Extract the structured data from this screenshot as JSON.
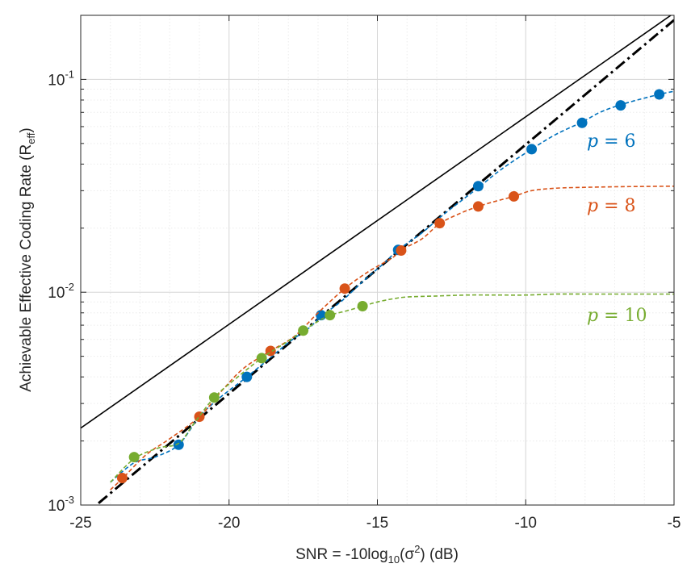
{
  "chart_data": {
    "type": "line",
    "y_scale": "log",
    "xlim": [
      -25,
      -5
    ],
    "ylim": [
      0.001,
      0.2
    ],
    "x_ticks": [
      -25,
      -20,
      -15,
      -10,
      -5
    ],
    "x_tick_labels": [
      "-25",
      "-20",
      "-15",
      "-10",
      "-5"
    ],
    "y_ticks": [
      {
        "value": 0.001,
        "base": "10",
        "exp": "-3"
      },
      {
        "value": 0.01,
        "base": "10",
        "exp": "-2"
      },
      {
        "value": 0.1,
        "base": "10",
        "exp": "-1"
      }
    ],
    "xlabel": {
      "pre": "SNR = -10log",
      "sub": "10",
      "mid": "(σ",
      "sup": "2",
      "post": ") (dB)"
    },
    "ylabel": {
      "main": "Achievable Effective Coding Rate (R",
      "sub": "eff",
      "post": ")"
    },
    "grid": true,
    "series": [
      {
        "name": "upper-bound-solid",
        "style": "solid",
        "color": "#000000",
        "x": [
          -25,
          -5
        ],
        "y": [
          0.0023,
          0.205
        ]
      },
      {
        "name": "bound-dashdot",
        "style": "dashdot",
        "color": "#000000",
        "x": [
          -24.4,
          -5
        ],
        "y": [
          0.00102,
          0.19
        ]
      },
      {
        "name": "p6",
        "label_var": "p",
        "label_eq": " = 6",
        "color": "#0072BD",
        "curve_x": [
          -24.0,
          -23.2,
          -22.5,
          -21.7,
          -21.0,
          -20.3,
          -19.5,
          -18.7,
          -18.0,
          -17.3,
          -16.9,
          -16.2,
          -15.5,
          -14.8,
          -14.3,
          -13.5,
          -12.8,
          -11.6,
          -10.8,
          -9.8,
          -9.0,
          -8.1,
          -7.5,
          -6.8,
          -6.1,
          -5.5,
          -5.0
        ],
        "curve_y": [
          0.00128,
          0.00158,
          0.00168,
          0.00192,
          0.0026,
          0.0032,
          0.0039,
          0.0048,
          0.0058,
          0.0068,
          0.0077,
          0.0091,
          0.0112,
          0.0136,
          0.0158,
          0.019,
          0.023,
          0.031,
          0.038,
          0.047,
          0.055,
          0.063,
          0.07,
          0.076,
          0.081,
          0.085,
          0.088
        ],
        "points_x": [
          -21.7,
          -19.4,
          -16.9,
          -14.3,
          -11.6,
          -9.8,
          -8.1,
          -6.8,
          -5.5
        ],
        "points_y": [
          0.00192,
          0.004,
          0.0078,
          0.0158,
          0.0315,
          0.047,
          0.0625,
          0.0755,
          0.085
        ]
      },
      {
        "name": "p8",
        "label_var": "p",
        "label_eq": " = 8",
        "color": "#D95319",
        "curve_x": [
          -24.0,
          -23.6,
          -22.8,
          -22.0,
          -21.0,
          -20.2,
          -19.5,
          -18.6,
          -17.8,
          -17.0,
          -16.1,
          -15.3,
          -14.5,
          -14.2,
          -13.5,
          -12.9,
          -12.2,
          -11.6,
          -11.0,
          -10.4,
          -9.8,
          -9.0,
          -8.0,
          -7.0,
          -6.0,
          -5.0
        ],
        "curve_y": [
          0.00118,
          0.00133,
          0.00172,
          0.00205,
          0.0026,
          0.0035,
          0.0044,
          0.0053,
          0.0062,
          0.008,
          0.0104,
          0.0125,
          0.0145,
          0.0158,
          0.0178,
          0.021,
          0.0235,
          0.0253,
          0.0268,
          0.0282,
          0.03,
          0.0308,
          0.0311,
          0.0313,
          0.0314,
          0.0315
        ],
        "points_x": [
          -23.6,
          -21.0,
          -18.6,
          -16.1,
          -14.2,
          -12.9,
          -11.6,
          -10.4
        ],
        "points_y": [
          0.00134,
          0.0026,
          0.0053,
          0.0104,
          0.0157,
          0.0211,
          0.0253,
          0.0282
        ]
      },
      {
        "name": "p10",
        "label_var": "p",
        "label_eq": " = 10",
        "color": "#77AC30",
        "curve_x": [
          -24.0,
          -23.2,
          -22.4,
          -21.7,
          -21.2,
          -20.5,
          -19.8,
          -18.9,
          -18.0,
          -17.5,
          -17.0,
          -16.6,
          -16.0,
          -15.5,
          -15.0,
          -14.5,
          -14.0,
          -13.0,
          -12.0,
          -11.0,
          -10.0,
          -9.0,
          -8.0,
          -7.0,
          -6.0,
          -5.0
        ],
        "curve_y": [
          0.00128,
          0.00165,
          0.00185,
          0.00195,
          0.0024,
          0.0032,
          0.0039,
          0.0049,
          0.0059,
          0.0066,
          0.0073,
          0.0078,
          0.0082,
          0.0086,
          0.009,
          0.0093,
          0.0095,
          0.0096,
          0.0097,
          0.0097,
          0.0097,
          0.0098,
          0.0098,
          0.0098,
          0.0098,
          0.0098
        ],
        "points_x": [
          -23.2,
          -20.5,
          -18.9,
          -17.5,
          -16.6,
          -15.5
        ],
        "points_y": [
          0.00168,
          0.0032,
          0.0049,
          0.0066,
          0.0078,
          0.0086
        ]
      }
    ]
  }
}
